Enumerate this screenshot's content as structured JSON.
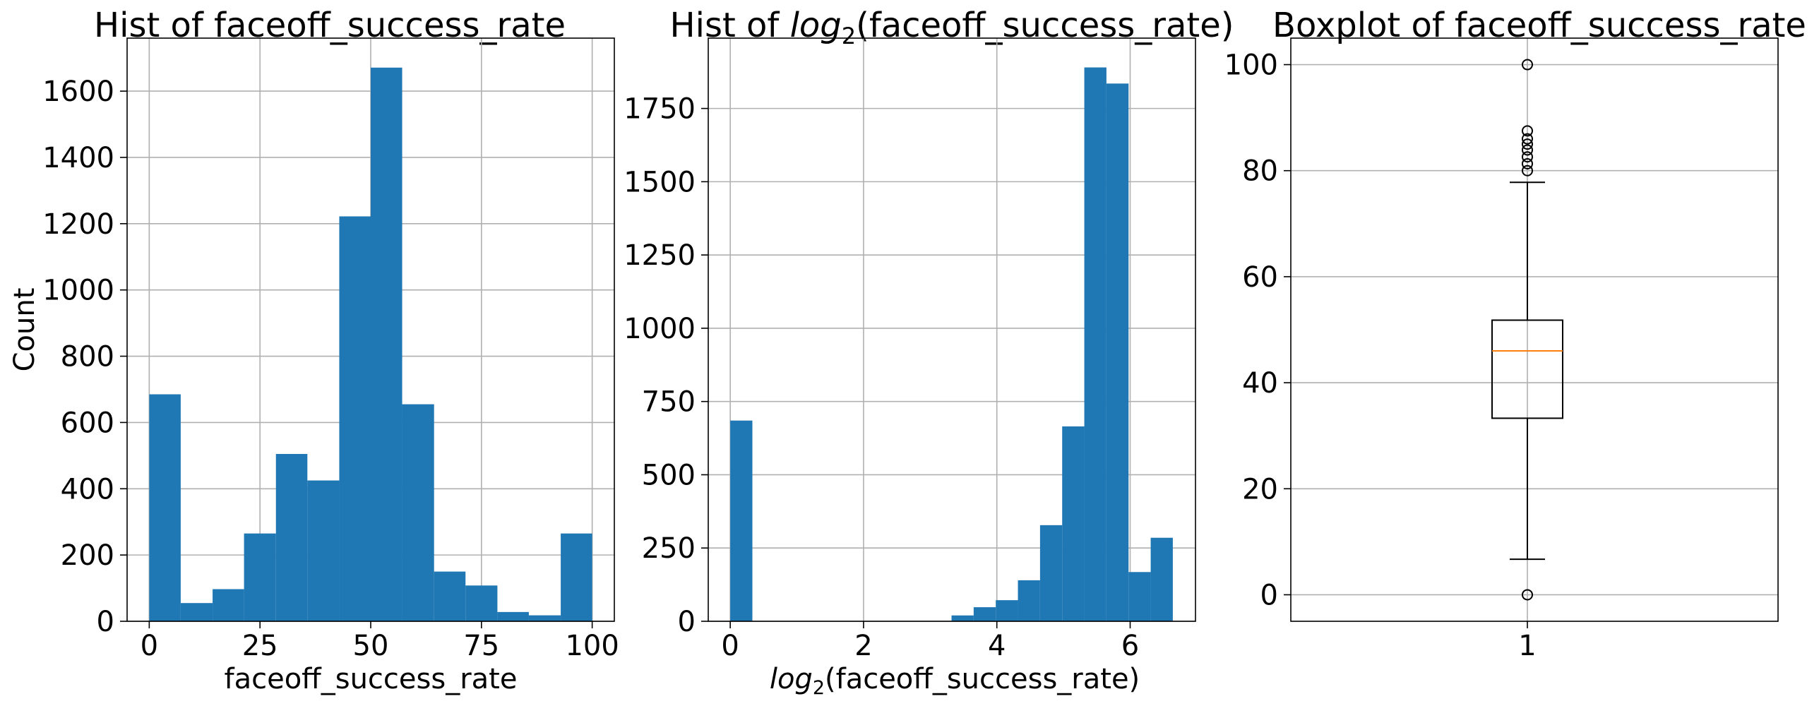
{
  "chart_data": [
    {
      "type": "histogram",
      "title": "Hist of faceoff_success_rate",
      "xlabel": "faceoff_success_rate",
      "ylabel": "Count",
      "xlim": [
        -5,
        105
      ],
      "ylim": [
        0,
        1760
      ],
      "xticks": [
        0,
        25,
        50,
        75,
        100
      ],
      "yticks": [
        0,
        200,
        400,
        600,
        800,
        1000,
        1200,
        1400,
        1600
      ],
      "grid": true,
      "color": "#1f77b4",
      "bins": [
        {
          "x0": 0,
          "x1": 7.1,
          "count": 685
        },
        {
          "x0": 7.1,
          "x1": 14.3,
          "count": 55
        },
        {
          "x0": 14.3,
          "x1": 21.4,
          "count": 97
        },
        {
          "x0": 21.4,
          "x1": 28.6,
          "count": 265
        },
        {
          "x0": 28.6,
          "x1": 35.7,
          "count": 505
        },
        {
          "x0": 35.7,
          "x1": 42.9,
          "count": 425
        },
        {
          "x0": 42.9,
          "x1": 50.0,
          "count": 1222
        },
        {
          "x0": 50.0,
          "x1": 57.1,
          "count": 1671
        },
        {
          "x0": 57.1,
          "x1": 64.3,
          "count": 655
        },
        {
          "x0": 64.3,
          "x1": 71.4,
          "count": 150
        },
        {
          "x0": 71.4,
          "x1": 78.6,
          "count": 108
        },
        {
          "x0": 78.6,
          "x1": 85.7,
          "count": 28
        },
        {
          "x0": 85.7,
          "x1": 92.9,
          "count": 18
        },
        {
          "x0": 92.9,
          "x1": 100.0,
          "count": 265
        }
      ]
    },
    {
      "type": "histogram",
      "title_pre": "Hist of ",
      "title_log": "log",
      "title_sub": "2",
      "title_post": "(faceoff_success_rate)",
      "xlabel_log": "log",
      "xlabel_sub": "2",
      "xlabel_post": "(faceoff_success_rate)",
      "xlim": [
        -0.33,
        6.98
      ],
      "ylim": [
        0,
        1990
      ],
      "xticks": [
        0,
        2,
        4,
        6
      ],
      "yticks": [
        0,
        250,
        500,
        750,
        1000,
        1250,
        1500,
        1750
      ],
      "grid": true,
      "color": "#1f77b4",
      "bins": [
        {
          "x0": 0.0,
          "x1": 0.332,
          "count": 685
        },
        {
          "x0": 3.32,
          "x1": 3.652,
          "count": 20
        },
        {
          "x0": 3.652,
          "x1": 3.984,
          "count": 48
        },
        {
          "x0": 3.984,
          "x1": 4.316,
          "count": 72
        },
        {
          "x0": 4.316,
          "x1": 4.648,
          "count": 140
        },
        {
          "x0": 4.648,
          "x1": 4.98,
          "count": 328
        },
        {
          "x0": 4.98,
          "x1": 5.312,
          "count": 665
        },
        {
          "x0": 5.312,
          "x1": 5.644,
          "count": 1890
        },
        {
          "x0": 5.644,
          "x1": 5.976,
          "count": 1835
        },
        {
          "x0": 5.976,
          "x1": 6.308,
          "count": 168
        },
        {
          "x0": 6.308,
          "x1": 6.64,
          "count": 285
        }
      ]
    },
    {
      "type": "boxplot",
      "title": "Boxplot of faceoff_success_rate",
      "xticks": [
        "1"
      ],
      "ylim": [
        -5,
        105
      ],
      "yticks": [
        0,
        20,
        40,
        60,
        80,
        100
      ],
      "grid": true,
      "median_color": "#ff7f0e",
      "box": {
        "q1": 33.3,
        "median": 46.0,
        "q3": 51.8,
        "whisker_low": 6.7,
        "whisker_high": 77.8
      },
      "outliers": [
        0,
        80.0,
        81.3,
        82.6,
        83.9,
        85.0,
        86.0,
        87.5,
        100
      ]
    }
  ]
}
